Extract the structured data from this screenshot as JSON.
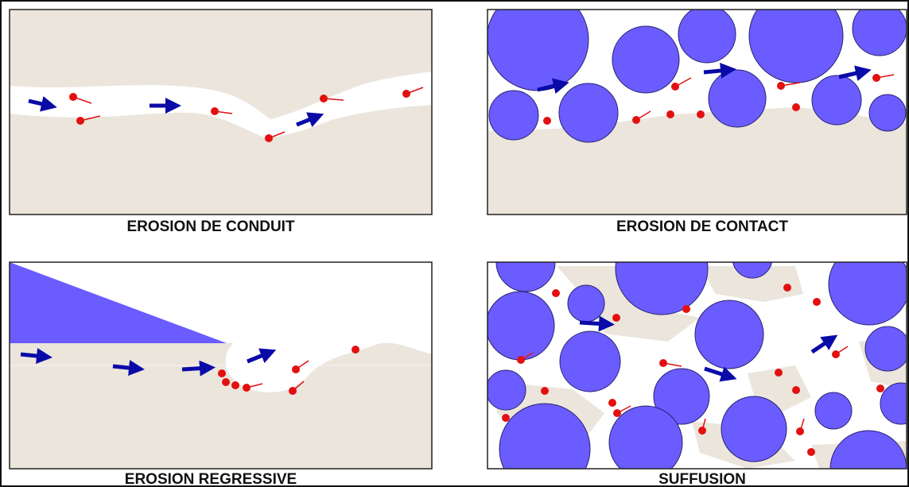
{
  "panels": [
    {
      "caption": "EROSION DE CONDUIT"
    },
    {
      "caption": "EROSION DE CONTACT"
    },
    {
      "caption": "EROSION REGRESSIVE"
    },
    {
      "caption": "SUFFUSION"
    }
  ]
}
